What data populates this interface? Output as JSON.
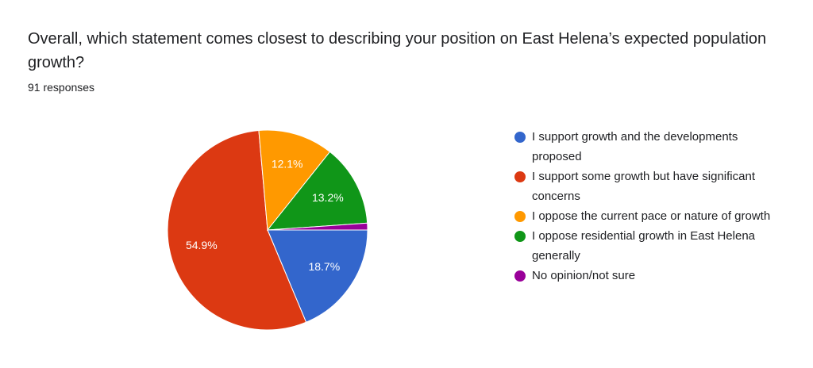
{
  "chart_data": {
    "type": "pie",
    "title": "Overall, which statement comes closest to describing your position on East Helena’s expected population growth?",
    "subtitle": "91 responses",
    "categories": [
      "I support growth and the developments proposed",
      "I support some growth but have significant concerns",
      "I oppose the current pace or nature of growth",
      "I oppose residential growth in East Helena generally",
      "No opinion/not sure"
    ],
    "values": [
      18.7,
      54.9,
      12.1,
      13.2,
      1.1
    ],
    "value_labels": [
      "18.7%",
      "54.9%",
      "12.1%",
      "13.2%",
      null
    ],
    "colors": [
      "#3366cc",
      "#dc3912",
      "#ff9900",
      "#109618",
      "#990099"
    ],
    "legend": "right"
  }
}
